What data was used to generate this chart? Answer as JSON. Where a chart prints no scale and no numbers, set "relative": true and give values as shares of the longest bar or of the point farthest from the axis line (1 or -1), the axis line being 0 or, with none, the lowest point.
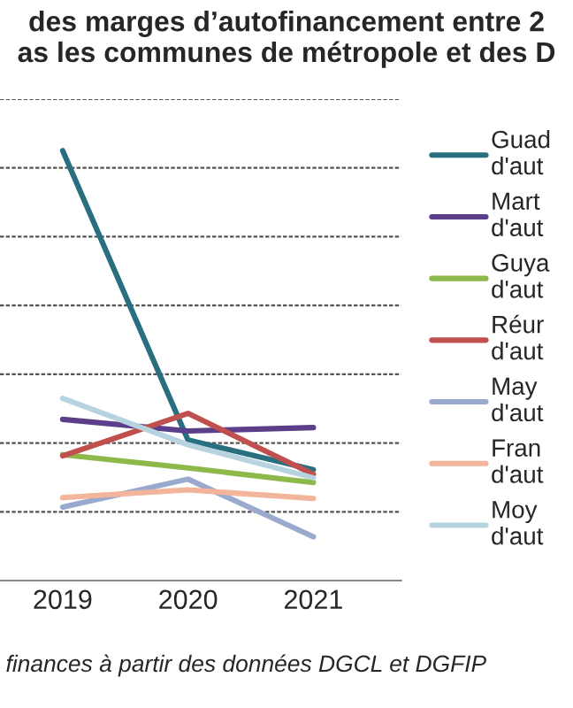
{
  "chart_data": {
    "type": "line",
    "relative": true,
    "title": "des marges d’autofinancement entre 2\nas les communes de métropole et des D",
    "categories": [
      "2019",
      "2020",
      "2021"
    ],
    "grid": "y",
    "legend": "right",
    "marker": "none",
    "line_style": "solid",
    "annotations": [
      "finances à partir des données DGCL et DGFIP"
    ],
    "series": [
      {
        "name": "Guad\nd'aut",
        "color": "#2a6f7f",
        "values": [
          1,
          0.327,
          0.258
        ]
      },
      {
        "name": "Mart\nd'aut",
        "color": "#5b3f8a",
        "values": [
          0.375,
          0.348,
          0.356
        ]
      },
      {
        "name": "Guya\nd'aut",
        "color": "#8db84a",
        "values": [
          0.293,
          0.262,
          0.228
        ]
      },
      {
        "name": "Réur\nd'aut",
        "color": "#c0504d",
        "values": [
          0.29,
          0.389,
          0.247
        ]
      },
      {
        "name": "May\nd'aut",
        "color": "#9aaace",
        "values": [
          0.171,
          0.236,
          0.102
        ]
      },
      {
        "name": "Fran\nd'aut",
        "color": "#f2b49a",
        "values": [
          0.193,
          0.211,
          0.191
        ]
      },
      {
        "name": "Moy\nd'aut",
        "color": "#b7d3e0",
        "values": [
          0.424,
          0.316,
          0.239
        ]
      }
    ]
  }
}
